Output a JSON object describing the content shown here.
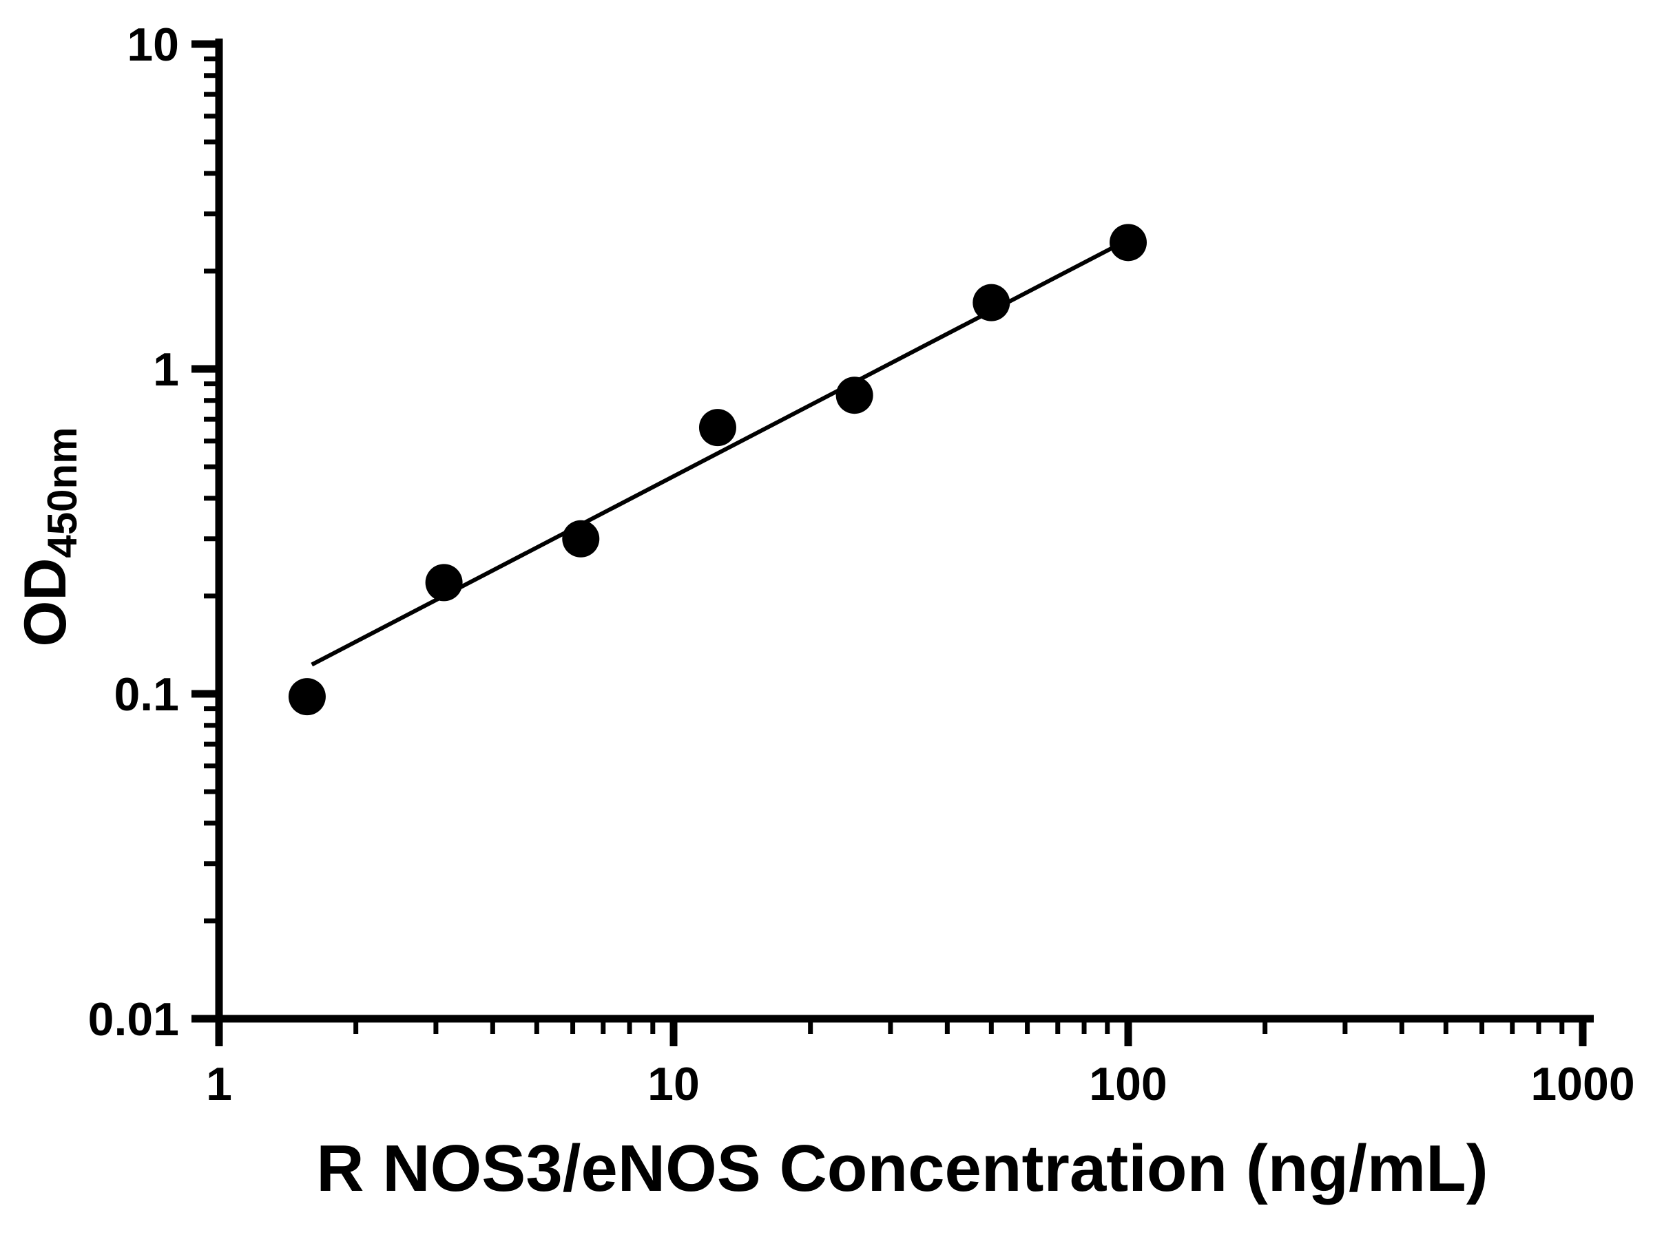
{
  "chart_data": {
    "type": "scatter",
    "title": "",
    "xlabel": "R NOS3/eNOS Concentration (ng/mL)",
    "ylabel_main": "OD",
    "ylabel_sub": "450nm",
    "x_scale": "log",
    "y_scale": "log",
    "xlim": [
      1,
      1000
    ],
    "ylim": [
      0.01,
      10
    ],
    "x_ticks": [
      1,
      10,
      100,
      1000
    ],
    "x_tick_labels": [
      "1",
      "10",
      "100",
      "1000"
    ],
    "y_ticks": [
      0.01,
      0.1,
      1,
      10
    ],
    "y_tick_labels": [
      "0.01",
      "0.1",
      "1",
      "10"
    ],
    "grid": "off",
    "legend": "none",
    "points": [
      {
        "x": 1.5625,
        "y": 0.098
      },
      {
        "x": 3.125,
        "y": 0.22
      },
      {
        "x": 6.25,
        "y": 0.3
      },
      {
        "x": 12.5,
        "y": 0.66
      },
      {
        "x": 25,
        "y": 0.83
      },
      {
        "x": 50,
        "y": 1.6
      },
      {
        "x": 100,
        "y": 2.45
      }
    ],
    "fit_line": {
      "x1": 1.6,
      "y1": 0.123,
      "x2": 100,
      "y2": 2.5
    },
    "colors": {
      "point": "#000000",
      "line": "#000000",
      "axis": "#000000",
      "background": "#ffffff"
    }
  }
}
